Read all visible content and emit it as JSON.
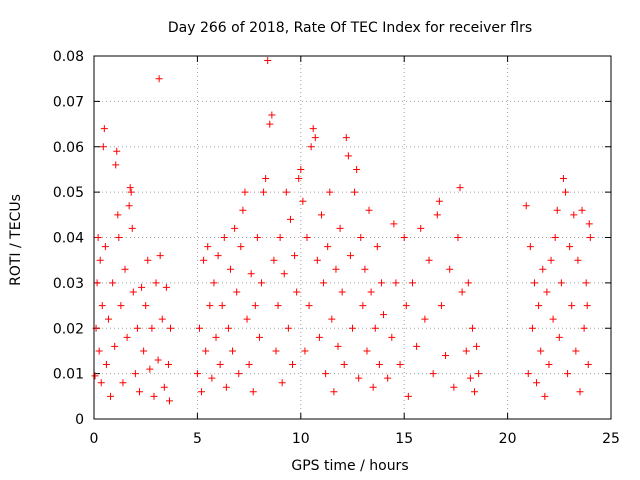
{
  "chart_data": {
    "type": "scatter",
    "title": "Day 266 of 2018, Rate Of TEC Index for receiver flrs",
    "xlabel": "GPS time / hours",
    "ylabel": "ROTI / TECUs",
    "xlim": [
      0,
      25
    ],
    "ylim": [
      0,
      0.08
    ],
    "xticks": [
      "0",
      "5",
      "10",
      "15",
      "20",
      "25"
    ],
    "yticks": [
      "0",
      "0.01",
      "0.02",
      "0.03",
      "0.04",
      "0.05",
      "0.06",
      "0.07",
      "0.08"
    ],
    "grid": true,
    "marker": "plus",
    "color": "#ff0000",
    "series": [
      {
        "points": [
          [
            0.05,
            0.0095
          ],
          [
            0.1,
            0.02
          ],
          [
            0.15,
            0.03
          ],
          [
            0.2,
            0.04
          ],
          [
            0.25,
            0.015
          ],
          [
            0.3,
            0.035
          ],
          [
            0.35,
            0.008
          ],
          [
            0.4,
            0.025
          ],
          [
            0.45,
            0.06
          ],
          [
            0.5,
            0.064
          ],
          [
            0.55,
            0.038
          ],
          [
            0.6,
            0.012
          ],
          [
            0.7,
            0.022
          ],
          [
            0.8,
            0.005
          ],
          [
            0.9,
            0.03
          ],
          [
            1.0,
            0.016
          ],
          [
            1.05,
            0.056
          ],
          [
            1.1,
            0.059
          ],
          [
            1.15,
            0.045
          ],
          [
            1.2,
            0.04
          ],
          [
            1.3,
            0.025
          ],
          [
            1.4,
            0.008
          ],
          [
            1.5,
            0.033
          ],
          [
            1.6,
            0.018
          ],
          [
            1.7,
            0.047
          ],
          [
            1.75,
            0.051
          ],
          [
            1.8,
            0.05
          ],
          [
            1.85,
            0.042
          ],
          [
            1.9,
            0.028
          ],
          [
            2.0,
            0.01
          ],
          [
            2.1,
            0.02
          ],
          [
            2.2,
            0.006
          ],
          [
            2.3,
            0.029
          ],
          [
            2.4,
            0.015
          ],
          [
            2.5,
            0.025
          ],
          [
            2.6,
            0.035
          ],
          [
            2.7,
            0.011
          ],
          [
            2.8,
            0.02
          ],
          [
            2.9,
            0.005
          ],
          [
            3.0,
            0.03
          ],
          [
            3.1,
            0.013
          ],
          [
            3.15,
            0.075
          ],
          [
            3.2,
            0.036
          ],
          [
            3.3,
            0.022
          ],
          [
            3.4,
            0.007
          ],
          [
            3.5,
            0.029
          ],
          [
            3.6,
            0.012
          ],
          [
            3.65,
            0.004
          ],
          [
            3.7,
            0.02
          ],
          [
            5.0,
            0.01
          ],
          [
            5.1,
            0.02
          ],
          [
            5.2,
            0.006
          ],
          [
            5.3,
            0.035
          ],
          [
            5.4,
            0.015
          ],
          [
            5.5,
            0.038
          ],
          [
            5.6,
            0.025
          ],
          [
            5.7,
            0.009
          ],
          [
            5.8,
            0.03
          ],
          [
            5.9,
            0.018
          ],
          [
            6.0,
            0.036
          ],
          [
            6.1,
            0.012
          ],
          [
            6.2,
            0.025
          ],
          [
            6.3,
            0.04
          ],
          [
            6.4,
            0.007
          ],
          [
            6.5,
            0.02
          ],
          [
            6.6,
            0.033
          ],
          [
            6.7,
            0.015
          ],
          [
            6.8,
            0.042
          ],
          [
            6.9,
            0.028
          ],
          [
            7.0,
            0.01
          ],
          [
            7.1,
            0.038
          ],
          [
            7.2,
            0.046
          ],
          [
            7.3,
            0.05
          ],
          [
            7.4,
            0.022
          ],
          [
            7.5,
            0.012
          ],
          [
            7.6,
            0.032
          ],
          [
            7.7,
            0.006
          ],
          [
            7.8,
            0.025
          ],
          [
            7.9,
            0.04
          ],
          [
            8.0,
            0.018
          ],
          [
            8.1,
            0.03
          ],
          [
            8.2,
            0.05
          ],
          [
            8.3,
            0.053
          ],
          [
            8.4,
            0.079
          ],
          [
            8.5,
            0.065
          ],
          [
            8.6,
            0.067
          ],
          [
            8.7,
            0.035
          ],
          [
            8.8,
            0.015
          ],
          [
            8.9,
            0.025
          ],
          [
            9.0,
            0.04
          ],
          [
            9.1,
            0.008
          ],
          [
            9.2,
            0.032
          ],
          [
            9.3,
            0.05
          ],
          [
            9.4,
            0.02
          ],
          [
            9.5,
            0.044
          ],
          [
            9.6,
            0.012
          ],
          [
            9.7,
            0.036
          ],
          [
            9.8,
            0.028
          ],
          [
            9.9,
            0.053
          ],
          [
            10.0,
            0.055
          ],
          [
            10.1,
            0.048
          ],
          [
            10.2,
            0.015
          ],
          [
            10.3,
            0.04
          ],
          [
            10.4,
            0.025
          ],
          [
            10.5,
            0.06
          ],
          [
            10.6,
            0.064
          ],
          [
            10.7,
            0.062
          ],
          [
            10.8,
            0.035
          ],
          [
            10.9,
            0.018
          ],
          [
            11.0,
            0.045
          ],
          [
            11.1,
            0.03
          ],
          [
            11.2,
            0.01
          ],
          [
            11.3,
            0.038
          ],
          [
            11.4,
            0.05
          ],
          [
            11.5,
            0.022
          ],
          [
            11.6,
            0.006
          ],
          [
            11.7,
            0.033
          ],
          [
            11.8,
            0.016
          ],
          [
            11.9,
            0.042
          ],
          [
            12.0,
            0.028
          ],
          [
            12.1,
            0.012
          ],
          [
            12.2,
            0.062
          ],
          [
            12.3,
            0.058
          ],
          [
            12.4,
            0.036
          ],
          [
            12.5,
            0.02
          ],
          [
            12.6,
            0.05
          ],
          [
            12.7,
            0.055
          ],
          [
            12.8,
            0.009
          ],
          [
            12.9,
            0.04
          ],
          [
            13.0,
            0.025
          ],
          [
            13.1,
            0.033
          ],
          [
            13.2,
            0.015
          ],
          [
            13.3,
            0.046
          ],
          [
            13.4,
            0.028
          ],
          [
            13.5,
            0.007
          ],
          [
            13.6,
            0.02
          ],
          [
            13.7,
            0.038
          ],
          [
            13.8,
            0.012
          ],
          [
            13.9,
            0.03
          ],
          [
            14.0,
            0.023
          ],
          [
            14.2,
            0.009
          ],
          [
            14.4,
            0.018
          ],
          [
            14.5,
            0.043
          ],
          [
            14.6,
            0.03
          ],
          [
            14.8,
            0.012
          ],
          [
            15.0,
            0.04
          ],
          [
            15.1,
            0.025
          ],
          [
            15.2,
            0.005
          ],
          [
            15.4,
            0.03
          ],
          [
            15.6,
            0.016
          ],
          [
            15.8,
            0.042
          ],
          [
            16.0,
            0.022
          ],
          [
            16.2,
            0.035
          ],
          [
            16.4,
            0.01
          ],
          [
            16.6,
            0.045
          ],
          [
            16.7,
            0.048
          ],
          [
            16.8,
            0.025
          ],
          [
            17.0,
            0.014
          ],
          [
            17.2,
            0.033
          ],
          [
            17.4,
            0.007
          ],
          [
            17.6,
            0.04
          ],
          [
            17.7,
            0.051
          ],
          [
            17.8,
            0.028
          ],
          [
            18.0,
            0.015
          ],
          [
            18.1,
            0.03
          ],
          [
            18.2,
            0.009
          ],
          [
            18.3,
            0.02
          ],
          [
            18.4,
            0.006
          ],
          [
            18.5,
            0.016
          ],
          [
            18.6,
            0.01
          ],
          [
            20.9,
            0.047
          ],
          [
            21.0,
            0.01
          ],
          [
            21.1,
            0.038
          ],
          [
            21.2,
            0.02
          ],
          [
            21.3,
            0.03
          ],
          [
            21.4,
            0.008
          ],
          [
            21.5,
            0.025
          ],
          [
            21.6,
            0.015
          ],
          [
            21.7,
            0.033
          ],
          [
            21.8,
            0.005
          ],
          [
            21.9,
            0.028
          ],
          [
            22.0,
            0.012
          ],
          [
            22.1,
            0.035
          ],
          [
            22.2,
            0.022
          ],
          [
            22.3,
            0.04
          ],
          [
            22.4,
            0.046
          ],
          [
            22.5,
            0.018
          ],
          [
            22.6,
            0.03
          ],
          [
            22.7,
            0.053
          ],
          [
            22.8,
            0.05
          ],
          [
            22.9,
            0.01
          ],
          [
            23.0,
            0.038
          ],
          [
            23.1,
            0.025
          ],
          [
            23.2,
            0.045
          ],
          [
            23.3,
            0.015
          ],
          [
            23.4,
            0.035
          ],
          [
            23.5,
            0.006
          ],
          [
            23.6,
            0.046
          ],
          [
            23.7,
            0.02
          ],
          [
            23.8,
            0.03
          ],
          [
            23.9,
            0.012
          ],
          [
            24.0,
            0.04
          ],
          [
            23.95,
            0.043
          ],
          [
            23.85,
            0.025
          ]
        ]
      }
    ]
  }
}
